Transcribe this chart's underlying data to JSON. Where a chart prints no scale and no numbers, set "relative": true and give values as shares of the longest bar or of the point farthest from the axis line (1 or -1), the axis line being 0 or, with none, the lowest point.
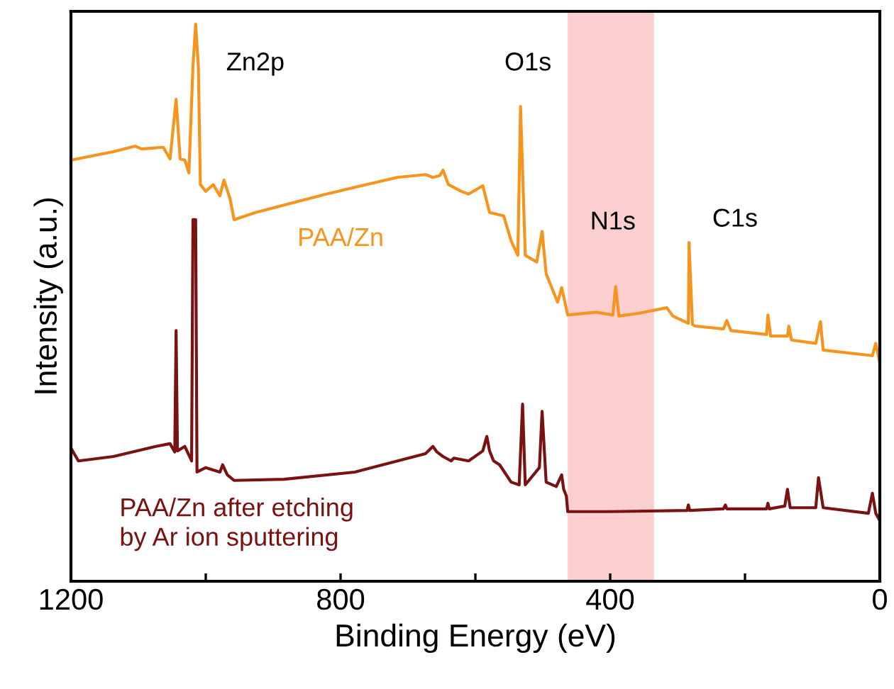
{
  "chart_data": {
    "type": "line",
    "relative": true,
    "xlabel": "Binding Energy (eV)",
    "ylabel": "Intensity (a.u.)",
    "xlim": [
      1200,
      0
    ],
    "xticks": [
      1200,
      {
        "value": 1000,
        "label": null
      },
      800,
      {
        "value": 600,
        "label": null
      },
      400,
      {
        "value": 200,
        "label": null
      },
      0
    ],
    "tick_labels": "x",
    "grid": false,
    "legend": false,
    "bands": [
      {
        "axis": "x",
        "from": 463,
        "to": 335,
        "color": "#fbcfcf"
      }
    ],
    "annotations": [
      "Zn2p",
      "O1s",
      "N1s",
      "C1s"
    ],
    "series": [
      {
        "name": "PAA/Zn",
        "color": "#f7941d",
        "x": [
          1200,
          1137,
          1105,
          1095,
          1063,
          1053,
          1044,
          1038,
          1031,
          1025,
          1019,
          1015,
          1011,
          1008,
          1000,
          989,
          979,
          973,
          964,
          958,
          926,
          821,
          716,
          674,
          663,
          653,
          648,
          640,
          621,
          610,
          589,
          579,
          558,
          547,
          537,
          533,
          526,
          509,
          501,
          495,
          478,
          472,
          463,
          421,
          396,
          392,
          387,
          358,
          316,
          307,
          284,
          283,
          278,
          274,
          232,
          227,
          221,
          168,
          166,
          162,
          137,
          135,
          131,
          95,
          88,
          84,
          11,
          6,
          0
        ],
        "values": [
          0.756,
          0.771,
          0.781,
          0.776,
          0.779,
          0.758,
          0.865,
          0.758,
          0.756,
          0.733,
          0.924,
          1.0,
          0.924,
          0.712,
          0.7,
          0.712,
          0.692,
          0.72,
          0.687,
          0.649,
          0.662,
          0.695,
          0.725,
          0.73,
          0.725,
          0.728,
          0.738,
          0.712,
          0.7,
          0.695,
          0.71,
          0.662,
          0.656,
          0.611,
          0.585,
          0.852,
          0.585,
          0.573,
          0.628,
          0.552,
          0.501,
          0.527,
          0.478,
          0.483,
          0.478,
          0.529,
          0.476,
          0.481,
          0.491,
          0.476,
          0.463,
          0.608,
          0.461,
          0.458,
          0.453,
          0.468,
          0.45,
          0.443,
          0.478,
          0.44,
          0.44,
          0.458,
          0.433,
          0.427,
          0.466,
          0.415,
          0.405,
          0.427,
          0.392
        ]
      },
      {
        "name": "PAA/Zn after etching\nby Ar ion sputtering",
        "color": "#7a1212",
        "x": [
          1200,
          1189,
          1137,
          1074,
          1053,
          1046,
          1044,
          1042,
          1031,
          1021,
          1019,
          1015,
          1013,
          1000,
          979,
          975,
          968,
          958,
          884,
          779,
          674,
          663,
          657,
          648,
          636,
          632,
          610,
          589,
          583,
          579,
          573,
          564,
          547,
          535,
          530,
          526,
          505,
          501,
          495,
          480,
          472,
          469,
          465,
          463,
          400,
          286,
          284,
          282,
          232,
          229,
          227,
          168,
          166,
          164,
          141,
          137,
          133,
          95,
          91,
          84,
          17,
          11,
          6,
          0
        ],
        "values": [
          0.239,
          0.216,
          0.224,
          0.242,
          0.247,
          0.232,
          0.45,
          0.234,
          0.242,
          0.216,
          0.649,
          0.649,
          0.196,
          0.204,
          0.196,
          0.209,
          0.191,
          0.181,
          0.183,
          0.196,
          0.229,
          0.242,
          0.232,
          0.224,
          0.216,
          0.221,
          0.216,
          0.234,
          0.26,
          0.234,
          0.216,
          0.209,
          0.178,
          0.173,
          0.318,
          0.173,
          0.204,
          0.305,
          0.178,
          0.17,
          0.191,
          0.165,
          0.153,
          0.125,
          0.125,
          0.127,
          0.137,
          0.127,
          0.13,
          0.137,
          0.13,
          0.13,
          0.14,
          0.13,
          0.135,
          0.165,
          0.132,
          0.132,
          0.186,
          0.132,
          0.122,
          0.158,
          0.122,
          0.109
        ]
      }
    ]
  }
}
